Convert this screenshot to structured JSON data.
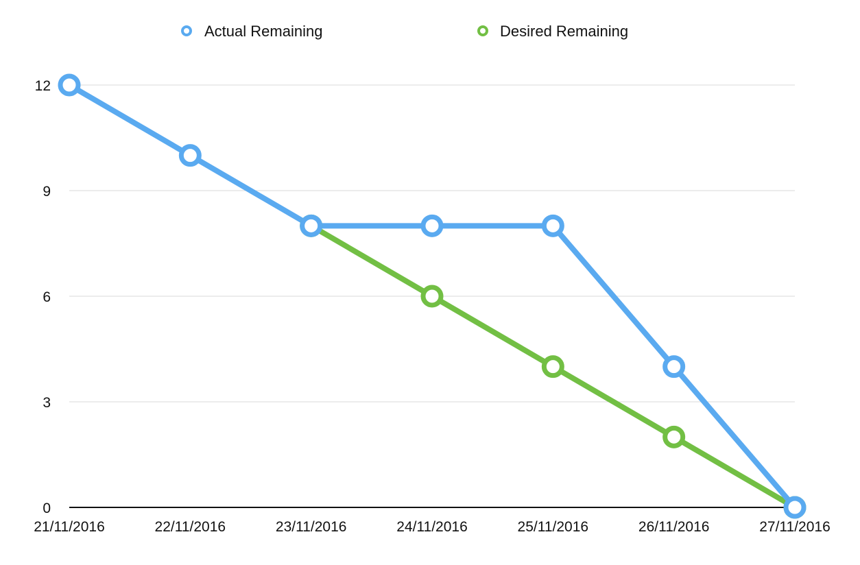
{
  "chart_data": {
    "type": "line",
    "title": "",
    "xlabel": "",
    "ylabel": "",
    "categories": [
      "21/11/2016",
      "22/11/2016",
      "23/11/2016",
      "24/11/2016",
      "25/11/2016",
      "26/11/2016",
      "27/11/2016"
    ],
    "ylim": [
      0,
      12
    ],
    "yticks": [
      0,
      3,
      6,
      9,
      12
    ],
    "ytick_labels": [
      "0",
      "3",
      "6",
      "9",
      "12"
    ],
    "grid": true,
    "legend_position": "top-center",
    "series": [
      {
        "name": "Actual Remaining",
        "color": "#5aaaf0",
        "values": [
          12,
          10,
          8,
          8,
          8,
          4,
          0
        ]
      },
      {
        "name": "Desired Remaining",
        "color": "#72bf44",
        "values": [
          null,
          null,
          8,
          6,
          4,
          2,
          0
        ]
      }
    ]
  }
}
